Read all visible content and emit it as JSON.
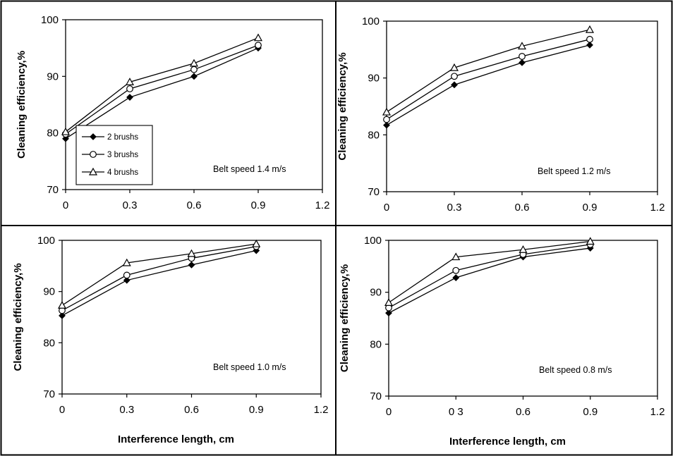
{
  "figure": {
    "shared_xlabel": "Interference length, cm",
    "shared_ylabel": "Cleaning efficiency,%"
  },
  "chart_data": [
    {
      "type": "line",
      "annotation": "Belt speed 1.4 m/s",
      "ylabel": "Cleaning efficiency,%",
      "xlabel": "",
      "x_ticks": [
        "0",
        "0.3",
        "0.6",
        "0.9",
        "1.2"
      ],
      "y_ticks": [
        "70",
        "80",
        "90",
        "100"
      ],
      "xlim": [
        0,
        1.2
      ],
      "ylim": [
        70,
        100
      ],
      "legend": {
        "position": "bottom-left",
        "entries": [
          "2 brushs",
          "3 brushs",
          "4 brushs"
        ]
      },
      "series": [
        {
          "name": "2 brushs",
          "marker": "filled-diamond",
          "x": [
            0,
            0.3,
            0.6,
            0.9
          ],
          "y": [
            79,
            86.3,
            90,
            95
          ]
        },
        {
          "name": "3 brushs",
          "marker": "open-circle",
          "x": [
            0,
            0.3,
            0.6,
            0.9
          ],
          "y": [
            79.8,
            87.8,
            91.2,
            95.5
          ]
        },
        {
          "name": "4 brushs",
          "marker": "open-triangle",
          "x": [
            0,
            0.3,
            0.6,
            0.9
          ],
          "y": [
            80.2,
            89,
            92.3,
            96.8
          ]
        }
      ]
    },
    {
      "type": "line",
      "annotation": "Belt speed 1.2 m/s",
      "ylabel": "Cleaning efficiency,%",
      "xlabel": "",
      "x_ticks": [
        "0",
        "0.3",
        "0.6",
        "0.9",
        "1.2"
      ],
      "y_ticks": [
        "70",
        "80",
        "90",
        "100"
      ],
      "xlim": [
        0,
        1.2
      ],
      "ylim": [
        70,
        100
      ],
      "series": [
        {
          "name": "2 brushs",
          "marker": "filled-diamond",
          "x": [
            0,
            0.3,
            0.6,
            0.9
          ],
          "y": [
            81.7,
            88.8,
            92.7,
            95.8
          ]
        },
        {
          "name": "3 brushs",
          "marker": "open-circle",
          "x": [
            0,
            0.3,
            0.6,
            0.9
          ],
          "y": [
            82.7,
            90.3,
            93.8,
            96.8
          ]
        },
        {
          "name": "4 brushs",
          "marker": "open-triangle",
          "x": [
            0,
            0.3,
            0.6,
            0.9
          ],
          "y": [
            84,
            91.8,
            95.6,
            98.5
          ]
        }
      ]
    },
    {
      "type": "line",
      "annotation": "Belt speed 1.0 m/s",
      "ylabel": "Cleaning efficiency,%",
      "xlabel": "Interference length, cm",
      "x_ticks": [
        "0",
        "0.3",
        "0.6",
        "0.9",
        "1.2"
      ],
      "y_ticks": [
        "70",
        "80",
        "90",
        "100"
      ],
      "xlim": [
        0,
        1.2
      ],
      "ylim": [
        70,
        100
      ],
      "series": [
        {
          "name": "2 brushs",
          "marker": "filled-diamond",
          "x": [
            0,
            0.3,
            0.6,
            0.9
          ],
          "y": [
            85.3,
            92.2,
            95.2,
            98
          ]
        },
        {
          "name": "3 brushs",
          "marker": "open-circle",
          "x": [
            0,
            0.3,
            0.6,
            0.9
          ],
          "y": [
            86.3,
            93.2,
            96.5,
            98.8
          ]
        },
        {
          "name": "4 brushs",
          "marker": "open-triangle",
          "x": [
            0,
            0.3,
            0.6,
            0.9
          ],
          "y": [
            87.3,
            95.6,
            97.4,
            99.3
          ]
        }
      ]
    },
    {
      "type": "line",
      "annotation": "Belt speed 0.8 m/s",
      "ylabel": "Cleaning efficiency,%",
      "xlabel": "Interference length, cm",
      "x_ticks": [
        "0",
        "0 3",
        "0.6",
        "0.9",
        "1.2"
      ],
      "y_ticks": [
        "70",
        "80",
        "90",
        "100"
      ],
      "xlim": [
        0,
        1.2
      ],
      "ylim": [
        70,
        100
      ],
      "series": [
        {
          "name": "2 brushs",
          "marker": "filled-diamond",
          "x": [
            0,
            0.3,
            0.6,
            0.9
          ],
          "y": [
            86,
            92.8,
            96.8,
            98.5
          ]
        },
        {
          "name": "3 brushs",
          "marker": "open-circle",
          "x": [
            0,
            0.3,
            0.6,
            0.9
          ],
          "y": [
            87,
            94.2,
            97.3,
            99.2
          ]
        },
        {
          "name": "4 brushs",
          "marker": "open-triangle",
          "x": [
            0,
            0.3,
            0.6,
            0.9
          ],
          "y": [
            88,
            96.8,
            98.2,
            99.8
          ]
        }
      ]
    }
  ]
}
